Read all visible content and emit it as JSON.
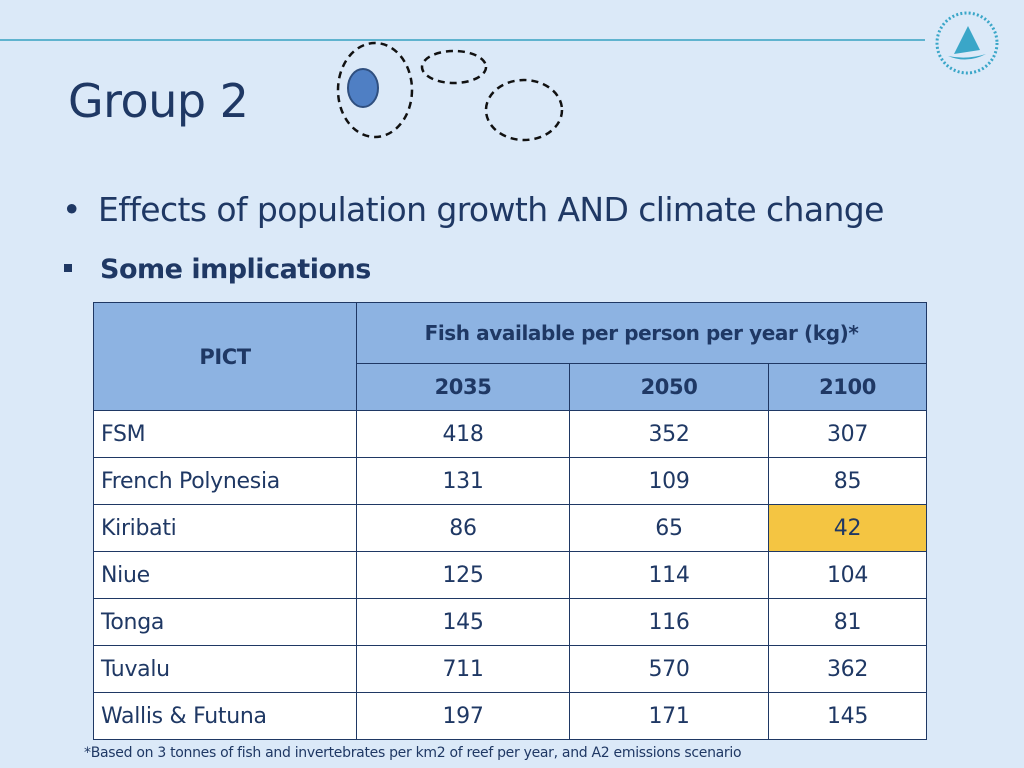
{
  "slide": {
    "title": "Group 2",
    "bullet_1": "Effects of population growth AND climate change",
    "bullet_2": "Some implications",
    "footnote": "*Based on 3 tonnes of fish and invertebrates per km2 of reef per year, and A2 emissions scenario"
  },
  "table": {
    "col_header_pict": "PICT",
    "col_header_group": "Fish available per person per year (kg)*",
    "years": [
      "2035",
      "2050",
      "2100"
    ],
    "rows": [
      {
        "name": "FSM",
        "v2035": "418",
        "v2050": "352",
        "v2100": "307"
      },
      {
        "name": "French Polynesia",
        "v2035": "131",
        "v2050": "109",
        "v2100": "85"
      },
      {
        "name": "Kiribati",
        "v2035": "86",
        "v2050": "65",
        "v2100": "42"
      },
      {
        "name": "Niue",
        "v2035": "125",
        "v2050": "114",
        "v2100": "104"
      },
      {
        "name": "Tonga",
        "v2035": "145",
        "v2050": "116",
        "v2100": "81"
      },
      {
        "name": "Tuvalu",
        "v2035": "711",
        "v2050": "570",
        "v2100": "362"
      },
      {
        "name": "Wallis & Futuna",
        "v2035": "197",
        "v2050": "171",
        "v2100": "145"
      }
    ],
    "highlight_color": "#f4c542"
  },
  "colors": {
    "background": "#dbe9f8",
    "text": "#1f3864",
    "header_fill": "#8db3e2",
    "rule": "#5fb3cf"
  },
  "icons": {
    "logo": "spc-sailboat-logo-icon",
    "graphic": "dashed-circles-graphic"
  }
}
